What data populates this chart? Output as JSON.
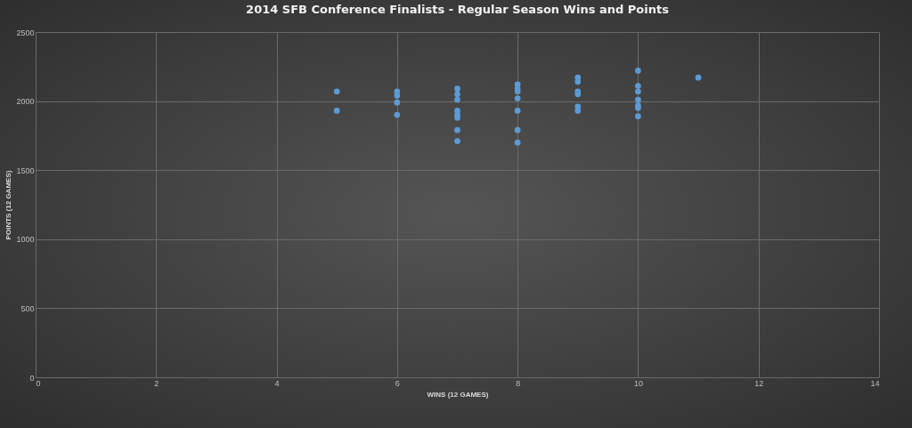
{
  "chart_data": {
    "type": "scatter",
    "title": "2014 SFB Conference Finalists - Regular Season Wins and Points",
    "xlabel": "WINS (12 GAMES)",
    "ylabel": "POINTS (12 GAMES)",
    "x": [
      5,
      5,
      6,
      6,
      6,
      6,
      7,
      7,
      7,
      7,
      7,
      7,
      7,
      7,
      8,
      8,
      8,
      8,
      8,
      8,
      8,
      9,
      9,
      9,
      9,
      9,
      9,
      10,
      10,
      10,
      10,
      10,
      10,
      10,
      11
    ],
    "series": [
      {
        "color": "#5b9bd5",
        "values": [
          2070,
          1930,
          2070,
          2040,
          1990,
          1900,
          2090,
          2050,
          2010,
          1930,
          1900,
          1880,
          1790,
          1710,
          2120,
          2090,
          2070,
          2020,
          1930,
          1790,
          1700,
          2170,
          2140,
          2070,
          2050,
          1960,
          1930,
          2220,
          2110,
          2070,
          2010,
          1970,
          1950,
          1890,
          2170
        ]
      }
    ],
    "xlim": [
      0,
      14
    ],
    "xticks": [
      0,
      2,
      4,
      6,
      8,
      10,
      12,
      14
    ],
    "ylim": [
      0,
      2500
    ],
    "yticks": [
      0,
      500,
      1000,
      1500,
      2000,
      2500
    ],
    "grid": true,
    "marker": "circle",
    "legend": false
  }
}
